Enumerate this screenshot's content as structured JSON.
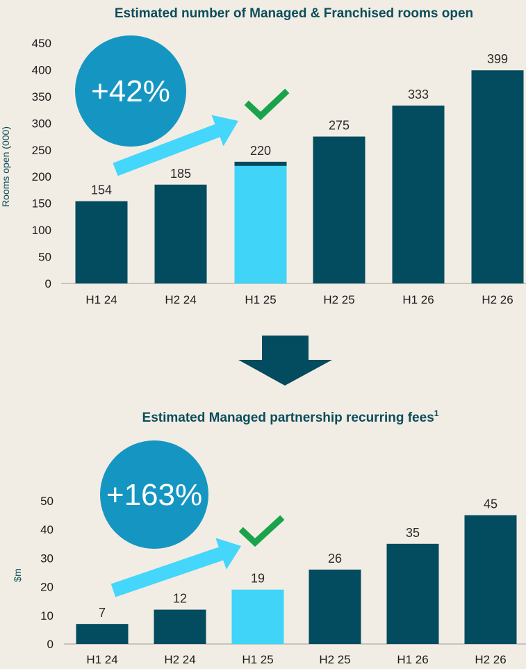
{
  "colors": {
    "background": "#f2ede4",
    "bar": "#034b5e",
    "highlight": "#3fd4f8",
    "badge": "#1596c2",
    "arrow": "#44d6fb",
    "check": "#1aa34a",
    "down_arrow": "#034b5e",
    "title": "#0b4d5c"
  },
  "chart_data": [
    {
      "type": "bar",
      "title": "Estimated number of Managed & Franchised rooms open",
      "ylabel": "Rooms open (000)",
      "xlabel": "",
      "categories": [
        "H1 24",
        "H2 24",
        "H1 25",
        "H2 25",
        "H1 26",
        "H2 26"
      ],
      "values": [
        154,
        185,
        220,
        275,
        333,
        399
      ],
      "highlight_index": 2,
      "highlight_cap": 6,
      "ylim": [
        0,
        450
      ],
      "yticks": [
        0,
        50,
        100,
        150,
        200,
        250,
        300,
        350,
        400,
        450
      ],
      "grid": false,
      "badge": "+42%",
      "icons": [
        "growth-arrow-icon",
        "checkmark-icon"
      ]
    },
    {
      "type": "bar",
      "title": "Estimated Managed partnership recurring fees",
      "title_footnote": "1",
      "ylabel": "$m",
      "xlabel": "",
      "categories": [
        "H1 24",
        "H2 24",
        "H1 25",
        "H2 25",
        "H1 26",
        "H2 26"
      ],
      "values": [
        7,
        12,
        19,
        26,
        35,
        45
      ],
      "highlight_index": 2,
      "ylim": [
        0,
        50
      ],
      "yticks": [
        0,
        10,
        20,
        30,
        40,
        50
      ],
      "grid": false,
      "badge": "+163%",
      "icons": [
        "growth-arrow-icon",
        "checkmark-icon"
      ]
    }
  ],
  "connector_icon": "down-arrow-icon"
}
